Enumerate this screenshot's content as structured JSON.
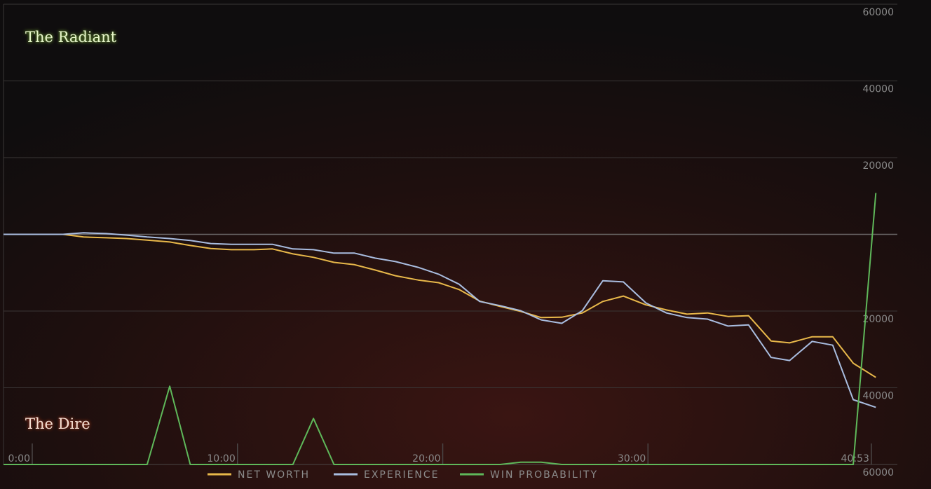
{
  "chart_data": {
    "type": "line",
    "annotations": [
      "The Radiant",
      "The Dire"
    ],
    "x": [
      -1.4,
      1.5,
      2.5,
      3.6,
      4.6,
      5.6,
      6.7,
      7.7,
      8.7,
      9.7,
      10.8,
      11.7,
      12.7,
      13.7,
      14.7,
      15.7,
      16.7,
      17.7,
      18.8,
      19.8,
      20.8,
      21.8,
      22.8,
      23.8,
      24.8,
      25.8,
      26.8,
      27.8,
      28.8,
      29.9,
      30.9,
      31.9,
      32.9,
      33.9,
      34.9,
      36.0,
      36.9,
      38.0,
      39.0,
      40.0,
      41.1
    ],
    "xlim": [
      -1.4,
      42.15
    ],
    "xticks": [
      {
        "value": 0,
        "label": "0:00"
      },
      {
        "value": 10,
        "label": "10:00"
      },
      {
        "value": 20,
        "label": "20:00"
      },
      {
        "value": 30,
        "label": "30:00"
      },
      {
        "value": 40.883,
        "label": "40:53"
      }
    ],
    "ylim": [
      -60000,
      60000
    ],
    "yticks": [
      {
        "value": -60000,
        "label": "60000"
      },
      {
        "value": -40000,
        "label": "40000"
      },
      {
        "value": -20000,
        "label": "20000"
      },
      20000,
      40000,
      60000
    ],
    "y2lim": [
      0,
      100
    ],
    "grid": true,
    "series": [
      {
        "name": "NET WORTH",
        "color": "#e8b84a",
        "values": [
          0,
          0,
          -700,
          -900,
          -1100,
          -1500,
          -2000,
          -2900,
          -3700,
          -4000,
          -4000,
          -3800,
          -5100,
          -6000,
          -7300,
          -7900,
          -9300,
          -10800,
          -11900,
          -12600,
          -14400,
          -17400,
          -18800,
          -20100,
          -21700,
          -21600,
          -20500,
          -17500,
          -16100,
          -18400,
          -19700,
          -20800,
          -20500,
          -21400,
          -21200,
          -27800,
          -28300,
          -26700,
          -26700,
          -33600,
          -37300
        ]
      },
      {
        "name": "EXPERIENCE",
        "color": "#a9bde0",
        "values": [
          0,
          0,
          400,
          200,
          -200,
          -700,
          -1100,
          -1600,
          -2400,
          -2600,
          -2600,
          -2600,
          -3800,
          -4000,
          -4900,
          -4900,
          -6200,
          -7100,
          -8600,
          -10400,
          -13000,
          -17500,
          -18600,
          -19900,
          -22300,
          -23200,
          -19900,
          -12100,
          -12400,
          -17900,
          -20500,
          -21700,
          -22100,
          -23900,
          -23600,
          -32100,
          -32900,
          -27900,
          -28900,
          -43100,
          -45100
        ]
      },
      {
        "name": "WIN PROBABILITY",
        "color": "#5fb85a",
        "axis": "y2",
        "values": [
          0,
          0,
          0,
          0,
          0,
          0,
          17,
          0,
          0,
          0,
          0,
          0,
          0,
          10,
          0,
          0,
          0,
          0,
          0,
          0,
          0,
          0,
          0,
          0.5,
          0.5,
          0,
          0,
          0,
          0,
          0,
          0,
          0,
          0,
          0,
          0,
          0,
          0,
          0,
          0,
          0,
          59
        ]
      }
    ]
  }
}
